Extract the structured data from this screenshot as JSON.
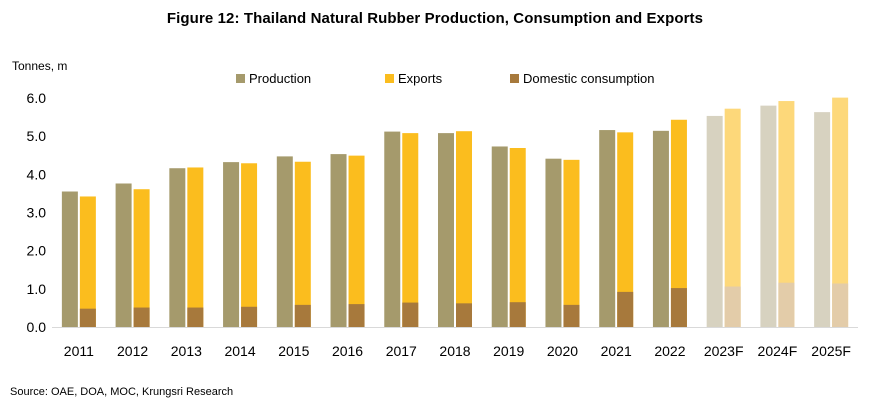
{
  "chart_data": {
    "type": "bar",
    "title": "Figure 12: Thailand Natural Rubber Production, Consumption and Exports",
    "ylabel": "Tonnes, m",
    "ylim": [
      0,
      6
    ],
    "yticks": [
      "0.0",
      "1.0",
      "2.0",
      "3.0",
      "4.0",
      "5.0",
      "6.0"
    ],
    "categories": [
      "2011",
      "2012",
      "2013",
      "2014",
      "2015",
      "2016",
      "2017",
      "2018",
      "2019",
      "2020",
      "2021",
      "2022",
      "2023F",
      "2024F",
      "2025F"
    ],
    "forecast_from_index": 12,
    "series": [
      {
        "name": "Production",
        "color": "#A59A6C",
        "forecast_color": "#D7D2C0",
        "values": [
          3.55,
          3.76,
          4.16,
          4.32,
          4.47,
          4.53,
          5.12,
          5.08,
          4.73,
          4.41,
          5.16,
          5.14,
          5.53,
          5.8,
          5.63
        ]
      },
      {
        "name": "Exports",
        "color": "#FBBD1E",
        "forecast_color": "#FDD87A",
        "values": [
          3.42,
          3.61,
          4.18,
          4.29,
          4.33,
          4.49,
          5.08,
          5.13,
          4.69,
          4.38,
          5.1,
          5.43,
          5.72,
          5.92,
          6.01
        ]
      },
      {
        "name": "Domestic consumption",
        "color": "#A7793C",
        "forecast_color": "#E3CCA9",
        "values": [
          0.48,
          0.51,
          0.51,
          0.53,
          0.58,
          0.6,
          0.64,
          0.62,
          0.65,
          0.58,
          0.92,
          1.02,
          1.06,
          1.16,
          1.14
        ]
      }
    ],
    "legend_position": "top",
    "grid": false
  },
  "source": "Source: OAE, DOA, MOC, Krungsri Research"
}
